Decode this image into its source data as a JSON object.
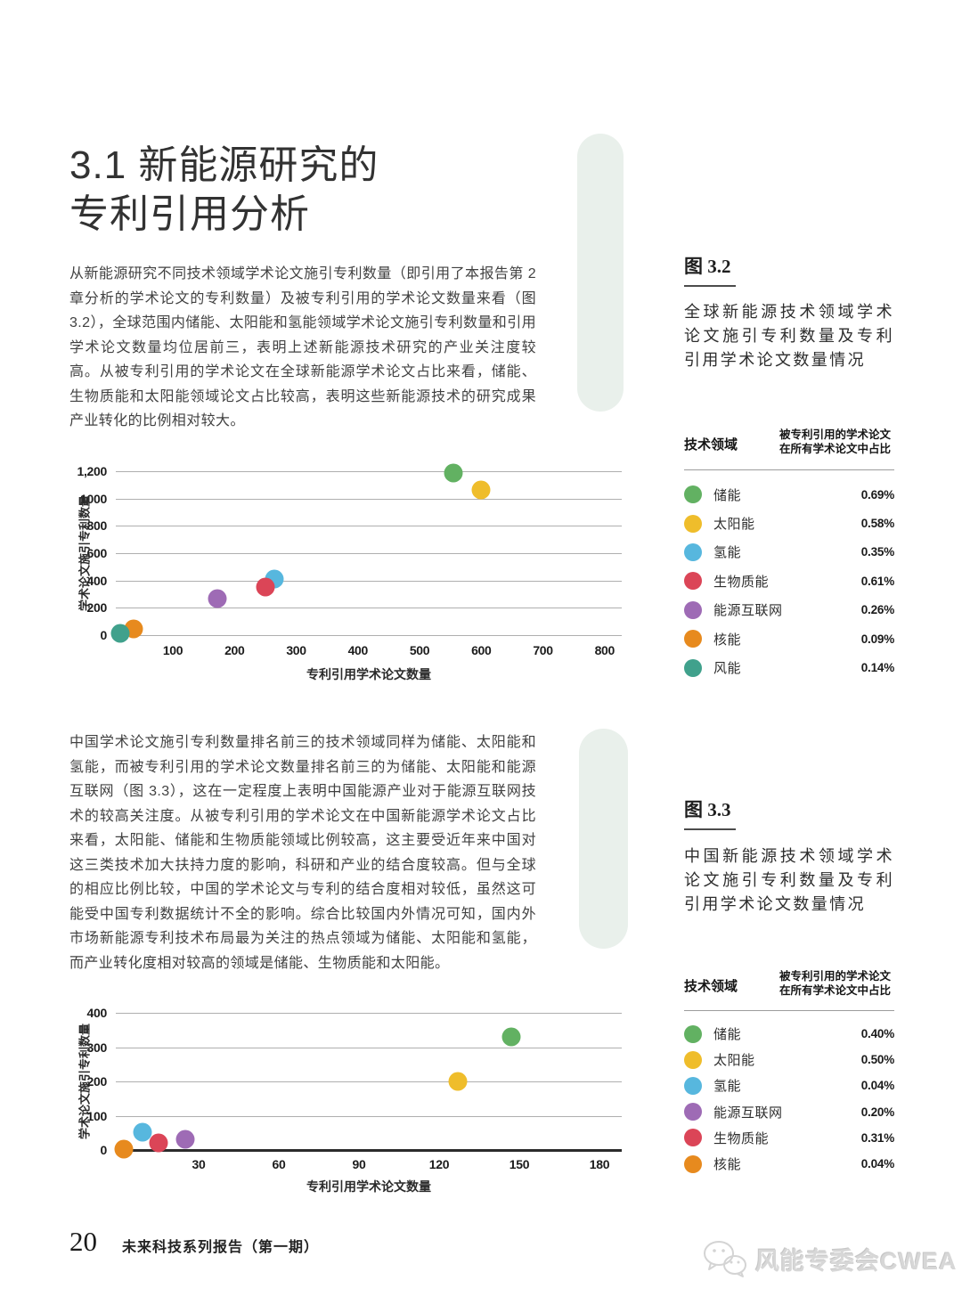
{
  "page": {
    "title_line1": "3.1 新能源研究的",
    "title_line2": "专利引用分析",
    "paragraph1": "从新能源研究不同技术领域学术论文施引专利数量（即引用了本报告第 2 章分析的学术论文的专利数量）及被专利引用的学术论文数量来看（图 3.2），全球范围内储能、太阳能和氢能领域学术论文施引专利数量和引用学术论文数量均位居前三，表明上述新能源技术研究的产业关注度较高。从被专利引用的学术论文在全球新能源学术论文占比来看，储能、生物质能和太阳能领域论文占比较高，表明这些新能源技术的研究成果产业转化的比例相对较大。",
    "paragraph2": "中国学术论文施引专利数量排名前三的技术领域同样为储能、太阳能和氢能，而被专利引用的学术论文数量排名前三的为储能、太阳能和能源互联网（图 3.3），这在一定程度上表明中国能源产业对于能源互联网技术的较高关注度。从被专利引用的学术论文在中国新能源学术论文占比来看，太阳能、储能和生物质能领域比例较高，这主要受近年来中国对这三类技术加大扶持力度的影响，科研和产业的结合度较高。但与全球的相应比例比较，中国的学术论文与专利的结合度相对较低，虽然这可能受中国专利数据统计不全的影响。综合比较国内外情况可知，国内外市场新能源专利技术布局最为关注的热点领域为储能、太阳能和氢能，而产业转化度相对较高的领域是储能、生物质能和太阳能。",
    "footer_page_number": "20",
    "footer_report_title": "未来科技系列报告（第一期）",
    "watermark_text": "风能专委会CWEA"
  },
  "colors": {
    "储能": "#62B162",
    "太阳能": "#EFBD2B",
    "氢能": "#57B7DE",
    "生物质能": "#DB4557",
    "能源互联网": "#9E6BB5",
    "核能": "#E78A1E",
    "风能": "#40A18C",
    "pill": "#E9F0EB",
    "gridline": "#AFAFAF"
  },
  "figures": [
    {
      "label": "图 3.2",
      "caption": "全球新能源技术领域学术论文施引专利数量及专利引用学术论文数量情况",
      "col1_header": "技术领域",
      "col2_header": [
        "被专利引用的学术论文",
        "在所有学术论文中占比"
      ],
      "rows": [
        {
          "label": "储能",
          "value": "0.69%"
        },
        {
          "label": "太阳能",
          "value": "0.58%"
        },
        {
          "label": "氢能",
          "value": "0.35%"
        },
        {
          "label": "生物质能",
          "value": "0.61%"
        },
        {
          "label": "能源互联网",
          "value": "0.26%"
        },
        {
          "label": "核能",
          "value": "0.09%"
        },
        {
          "label": "风能",
          "value": "0.14%"
        }
      ]
    },
    {
      "label": "图 3.3",
      "caption": "中国新能源技术领域学术论文施引专利数量及专利引用学术论文数量情况",
      "col1_header": "技术领域",
      "col2_header": [
        "被专利引用的学术论文",
        "在所有学术论文中占比"
      ],
      "rows": [
        {
          "label": "储能",
          "value": "0.40%"
        },
        {
          "label": "太阳能",
          "value": "0.50%"
        },
        {
          "label": "氢能",
          "value": "0.04%"
        },
        {
          "label": "能源互联网",
          "value": "0.20%"
        },
        {
          "label": "生物质能",
          "value": "0.31%"
        },
        {
          "label": "核能",
          "value": "0.04%"
        }
      ]
    }
  ],
  "chart_data": [
    {
      "type": "scatter",
      "title": "全球新能源技术领域学术论文施引专利数量及专利引用学术论文数量情况",
      "xlabel": "专利引用学术论文数量",
      "ylabel": "学术论文施引专利数量",
      "xlim": [
        0,
        830
      ],
      "ylim": [
        0,
        1200
      ],
      "grid": true,
      "xticks": [
        100,
        200,
        300,
        400,
        500,
        600,
        700,
        800
      ],
      "yticks": [
        {
          "label": "0",
          "value": 0
        },
        {
          "label": "200",
          "value": 200
        },
        {
          "label": "400",
          "value": 400
        },
        {
          "label": "600",
          "value": 600
        },
        {
          "label": "800",
          "value": 800
        },
        {
          "label": "1000",
          "value": 1000
        },
        {
          "label": "1,200",
          "value": 1200
        }
      ],
      "points": [
        {
          "name": "储能",
          "x": 555,
          "y": 1185
        },
        {
          "name": "太阳能",
          "x": 600,
          "y": 1060
        },
        {
          "name": "氢能",
          "x": 265,
          "y": 410
        },
        {
          "name": "生物质能",
          "x": 250,
          "y": 350
        },
        {
          "name": "能源互联网",
          "x": 172,
          "y": 270
        },
        {
          "name": "核能",
          "x": 37,
          "y": 45
        },
        {
          "name": "风能",
          "x": 15,
          "y": 10
        }
      ]
    },
    {
      "type": "scatter",
      "title": "中国新能源技术领域学术论文施引专利数量及专利引用学术论文数量情况",
      "xlabel": "专利引用学术论文数量",
      "ylabel": "学术论文施引专利数量",
      "xlim": [
        0,
        188
      ],
      "ylim": [
        0,
        400
      ],
      "grid": true,
      "xticks": [
        30,
        60,
        90,
        120,
        150,
        180
      ],
      "yticks": [
        {
          "label": "0",
          "value": 0
        },
        {
          "label": "100",
          "value": 100
        },
        {
          "label": "200",
          "value": 200
        },
        {
          "label": "300",
          "value": 300
        },
        {
          "label": "400",
          "value": 400
        }
      ],
      "points": [
        {
          "name": "储能",
          "x": 147,
          "y": 330
        },
        {
          "name": "太阳能",
          "x": 127,
          "y": 200
        },
        {
          "name": "氢能",
          "x": 9,
          "y": 52
        },
        {
          "name": "能源互联网",
          "x": 25,
          "y": 30
        },
        {
          "name": "生物质能",
          "x": 15,
          "y": 20
        },
        {
          "name": "核能",
          "x": 2,
          "y": 2
        }
      ]
    }
  ]
}
